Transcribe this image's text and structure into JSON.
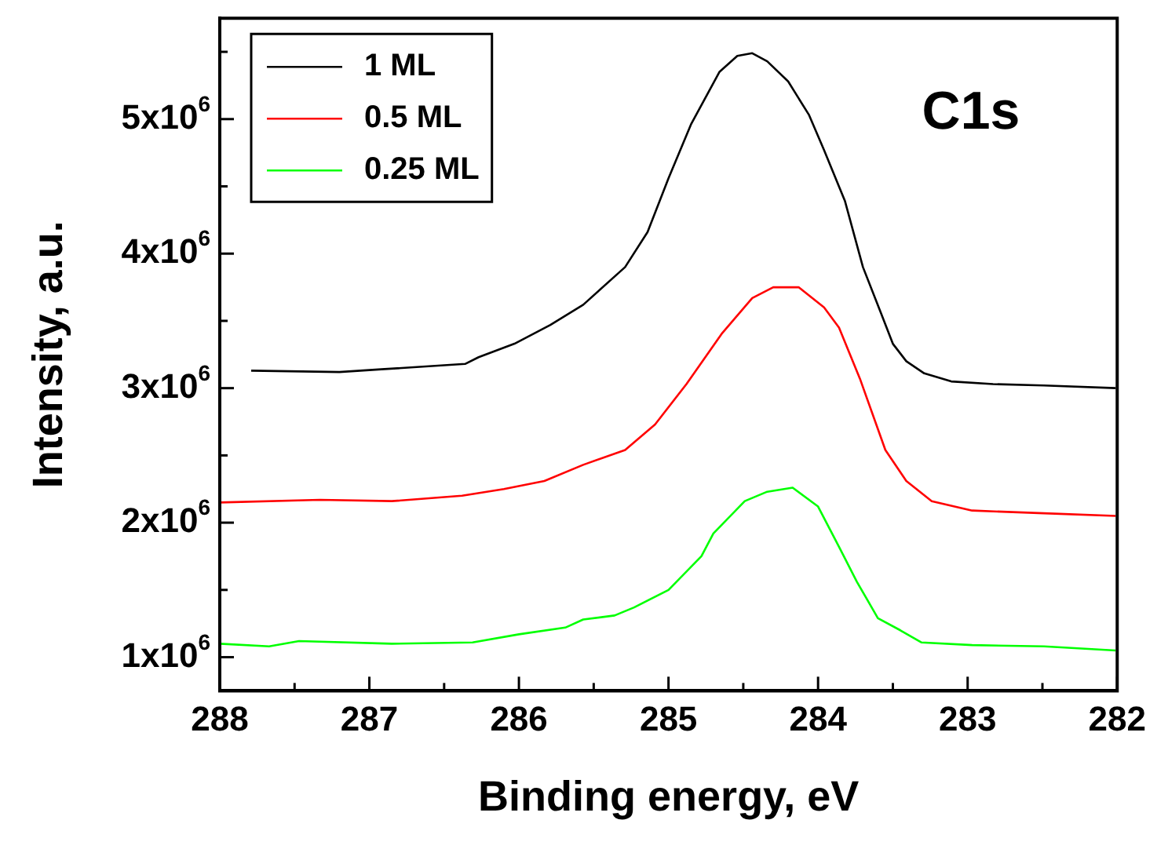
{
  "chart_data": {
    "type": "line",
    "xlabel": "Binding energy, eV",
    "ylabel": "Intensity, a.u.",
    "annotations": [
      "C1s"
    ],
    "xlim": [
      288,
      282
    ],
    "xticks": [
      288,
      {
        "value": 287.5,
        "label": null
      },
      287,
      {
        "value": 286.5,
        "label": null
      },
      286,
      {
        "value": 285.5,
        "label": null
      },
      285,
      {
        "value": 284.5,
        "label": null
      },
      284,
      {
        "value": 283.5,
        "label": null
      },
      283,
      {
        "value": 282.5,
        "label": null
      },
      282
    ],
    "ylim": [
      750000,
      5750000
    ],
    "yticks": [
      {
        "value": 1000000,
        "label": "1x10$^{6}$"
      },
      {
        "value": 1500000,
        "label": null
      },
      {
        "value": 2000000,
        "label": "2x10$^{6}$"
      },
      {
        "value": 2500000,
        "label": null
      },
      {
        "value": 3000000,
        "label": "3x10$^{6}$"
      },
      {
        "value": 3500000,
        "label": null
      },
      {
        "value": 4000000,
        "label": "4x10$^{6}$"
      },
      {
        "value": 4500000,
        "label": null
      },
      {
        "value": 5000000,
        "label": "5x10$^{6}$"
      },
      {
        "value": 5500000,
        "label": null
      }
    ],
    "grid": false,
    "legend": "top left",
    "series": [
      {
        "name": "1 ML",
        "color": "#000000",
        "x": [
          287.79,
          287.2,
          286.92,
          286.36,
          286.27,
          286.03,
          285.79,
          285.57,
          285.29,
          285.14,
          285.0,
          284.85,
          284.66,
          284.54,
          284.44,
          284.34,
          284.2,
          284.06,
          283.96,
          283.82,
          283.7,
          283.58,
          283.5,
          283.41,
          283.29,
          283.11,
          282.83,
          282.49,
          282.01
        ],
        "values": [
          3130000,
          3120000,
          3140000,
          3180000,
          3230000,
          3330000,
          3470000,
          3620000,
          3900000,
          4160000,
          4560000,
          4960000,
          5350000,
          5470000,
          5490000,
          5430000,
          5280000,
          5030000,
          4770000,
          4390000,
          3900000,
          3560000,
          3330000,
          3200000,
          3110000,
          3050000,
          3030000,
          3020000,
          3000000
        ]
      },
      {
        "name": "0.5 ML",
        "color": "#ff0000",
        "x": [
          288.0,
          287.33,
          286.85,
          286.38,
          286.1,
          285.83,
          285.57,
          285.29,
          285.09,
          284.88,
          284.64,
          284.44,
          284.3,
          284.13,
          283.96,
          283.86,
          283.72,
          283.55,
          283.41,
          283.24,
          282.97,
          282.49,
          282.01
        ],
        "values": [
          2150000,
          2170000,
          2160000,
          2200000,
          2250000,
          2310000,
          2430000,
          2540000,
          2730000,
          3030000,
          3410000,
          3670000,
          3750000,
          3750000,
          3600000,
          3450000,
          3070000,
          2540000,
          2310000,
          2160000,
          2090000,
          2070000,
          2050000
        ]
      },
      {
        "name": "0.25 ML",
        "color": "#00ff00",
        "x": [
          288.0,
          287.67,
          287.47,
          286.85,
          286.31,
          286.0,
          285.69,
          285.57,
          285.36,
          285.23,
          285.0,
          284.78,
          284.7,
          284.49,
          284.34,
          284.17,
          284.0,
          283.86,
          283.74,
          283.6,
          283.45,
          283.31,
          282.97,
          282.49,
          282.01
        ],
        "values": [
          1100000,
          1080000,
          1120000,
          1100000,
          1110000,
          1170000,
          1220000,
          1280000,
          1310000,
          1370000,
          1500000,
          1750000,
          1920000,
          2160000,
          2230000,
          2260000,
          2120000,
          1820000,
          1560000,
          1290000,
          1200000,
          1110000,
          1090000,
          1080000,
          1050000
        ]
      }
    ]
  }
}
